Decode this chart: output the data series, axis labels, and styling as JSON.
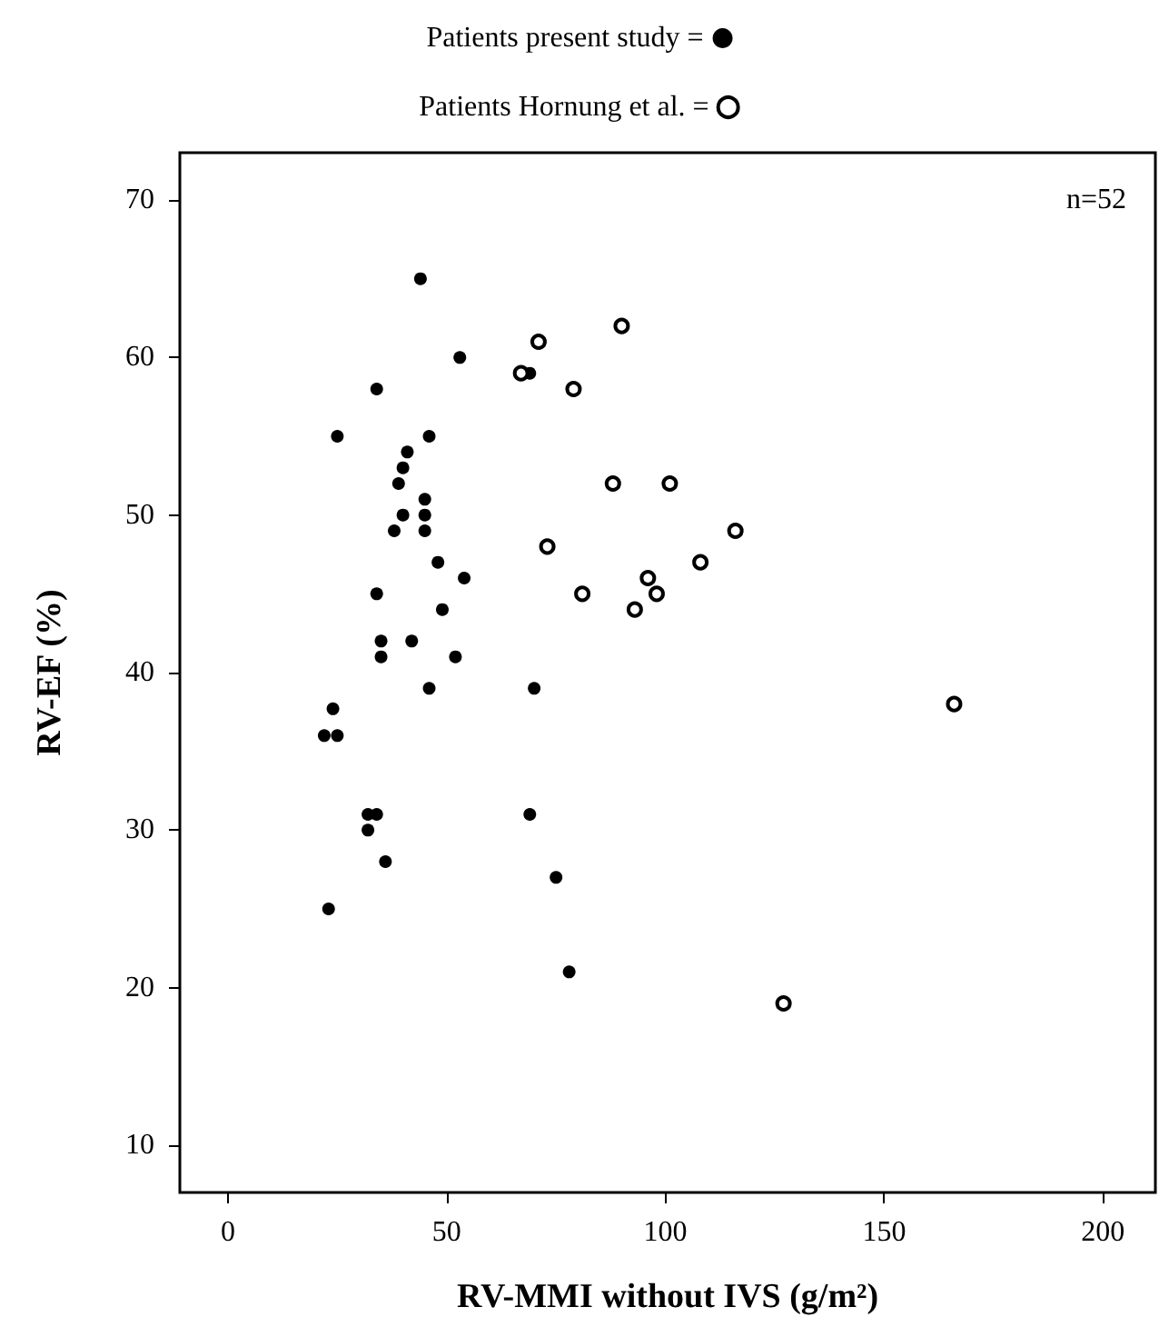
{
  "chart_data": {
    "type": "scatter",
    "xlabel": "RV-MMI without IVS (g/m²)",
    "ylabel": "RV-EF (%)",
    "xlim": [
      -11,
      212
    ],
    "xticks": [
      0,
      50,
      100,
      150,
      200
    ],
    "ylim": [
      7,
      73
    ],
    "yticks": [
      10,
      20,
      30,
      40,
      50,
      60,
      70
    ],
    "grid": false,
    "legend": "top",
    "marker": "circle",
    "annotations": [
      "n=52"
    ],
    "series": [
      {
        "name": "Patients present study =",
        "color": "#000000",
        "x": [
          44,
          53,
          69,
          34,
          25,
          46,
          41,
          40,
          39,
          45,
          40,
          45,
          38,
          45,
          48,
          54,
          34,
          49,
          35,
          42,
          35,
          52,
          46,
          70,
          24,
          22,
          25,
          32,
          34,
          32,
          36,
          69,
          75,
          23,
          78
        ],
        "values": [
          65,
          60,
          59,
          58,
          55,
          55,
          54,
          53,
          52,
          51,
          50,
          50,
          49,
          49,
          47,
          46,
          45,
          44,
          42,
          42,
          41,
          41,
          39,
          39,
          37.7,
          36,
          36,
          31,
          31,
          30,
          28,
          31,
          27,
          25,
          21
        ]
      },
      {
        "name": "Patients Hornung et al. =",
        "color": "#000000",
        "x": [
          71,
          90,
          67,
          79,
          88,
          101,
          73,
          116,
          108,
          96,
          81,
          98,
          93,
          166,
          127
        ],
        "values": [
          61,
          62,
          59,
          58,
          52,
          52,
          48,
          49,
          47,
          46,
          45,
          45,
          44,
          38,
          19
        ]
      }
    ]
  }
}
